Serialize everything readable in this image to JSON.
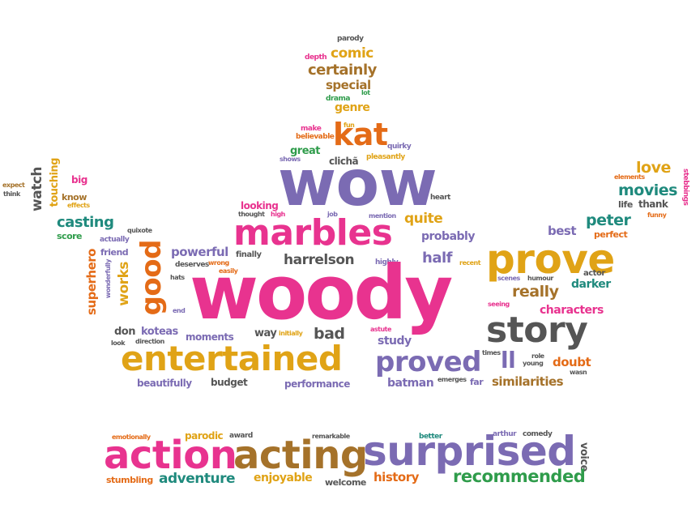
{
  "colors": {
    "pink": "#e8338f",
    "purple": "#7b6bb3",
    "orange": "#e46b17",
    "gold": "#e0a316",
    "green": "#2f9c4b",
    "teal": "#1f8a7d",
    "brown": "#a5722a",
    "gray": "#555555",
    "magenta": "#c2185b"
  },
  "words": {
    "woody": "woody",
    "wow": "wow",
    "prove": "prove",
    "marbles": "marbles",
    "story": "story",
    "entertained": "entertained",
    "proved": "proved",
    "kat": "kat",
    "good": "good",
    "action": "action",
    "acting": "acting",
    "surprised": "surprised",
    "recommended": "recommended",
    "adventure": "adventure",
    "enjoyable": "enjoyable",
    "history": "history",
    "welcome": "welcome",
    "stumbling": "stumbling",
    "voice": "voice",
    "emotionally": "emotionally",
    "parodic": "parodic",
    "award": "award",
    "remarkable": "remarkable",
    "better": "better",
    "arthur": "arthur",
    "comedy": "comedy",
    "parody": "parody",
    "depth": "depth",
    "comic": "comic",
    "certainly": "certainly",
    "special": "special",
    "drama": "drama",
    "lot": "lot",
    "genre": "genre",
    "make": "make",
    "believable": "believable",
    "fun": "fun",
    "quirky": "quirky",
    "great": "great",
    "shows": "shows",
    "cliche": "clichã",
    "pleasantly": "pleasantly",
    "heart": "heart",
    "looking": "looking",
    "thought": "thought",
    "high": "high",
    "job": "job",
    "mention": "mention",
    "quite": "quite",
    "probably": "probably",
    "harrelson": "harrelson",
    "highly": "highly",
    "half": "half",
    "recent": "recent",
    "powerful": "powerful",
    "deserves": "deserves",
    "wrong": "wrong",
    "easily": "easily",
    "finally": "finally",
    "hats": "hats",
    "end": "end",
    "really": "really",
    "seeing": "seeing",
    "scenes": "scenes",
    "humour": "humour",
    "actor": "actor",
    "darker": "darker",
    "characters": "characters",
    "best": "best",
    "peter": "peter",
    "perfect": "perfect",
    "love": "love",
    "elements": "elements",
    "movies": "movies",
    "life": "life",
    "thank": "thank",
    "funny": "funny",
    "stebbings": "stebbings",
    "expect": "expect",
    "think": "think",
    "watch": "watch",
    "touching": "touching",
    "big": "big",
    "know": "know",
    "effects": "effects",
    "casting": "casting",
    "quixote": "quixote",
    "score": "score",
    "actually": "actually",
    "superhero": "superhero",
    "friend": "friend",
    "wonderfully": "wonderfully",
    "works": "works",
    "don": "don",
    "koteas": "koteas",
    "look": "look",
    "direction": "direction",
    "moments": "moments",
    "way": "way",
    "initially": "initially",
    "bad": "bad",
    "astute": "astute",
    "study": "study",
    "times": "times",
    "ll": "ll",
    "role": "role",
    "young": "young",
    "doubt": "doubt",
    "wasn": "wasn",
    "beautifully": "beautifully",
    "budget": "budget",
    "performance": "performance",
    "batman": "batman",
    "emerges": "emerges",
    "far": "far",
    "similarities": "similarities"
  }
}
